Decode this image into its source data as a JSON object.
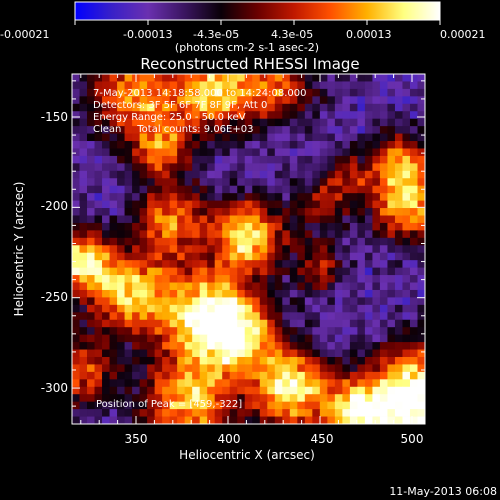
{
  "colorbar": {
    "tick_labels": [
      "-0.00021",
      "-0.00013",
      "-4.3e-05",
      "4.3e-05",
      "0.00013",
      "0.00021"
    ],
    "unit_label": "(photons cm-2 s-1 asec-2)"
  },
  "title": "Reconstructed RHESSI Image",
  "info": {
    "time_range": "7-May-2013 14:18:58.000 to 14:24:08.000",
    "detectors": "Detectors: 3F 5F 6F 7F 8F 9F, Att 0",
    "energy_range": "Energy Range: 25.0 - 50.0 keV",
    "clean_counts": "Clean     Total counts: 9.06E+03"
  },
  "peak_label": "Position of Peak = [459,-322]",
  "axes": {
    "x_label": "Heliocentric X (arcsec)",
    "y_label": "Heliocentric Y (arcsec)",
    "x_ticks": [
      "350",
      "400",
      "450",
      "500"
    ],
    "y_ticks": [
      "-150",
      "-200",
      "-250",
      "-300"
    ]
  },
  "footer_timestamp": "11-May-2013 06:08",
  "colors": {
    "colormap": [
      "#0000ff",
      "#3820c8",
      "#6a30b0",
      "#3a1560",
      "#0a0008",
      "#6a0000",
      "#c01800",
      "#ff5000",
      "#ffb000",
      "#ffff80",
      "#ffffff"
    ]
  }
}
